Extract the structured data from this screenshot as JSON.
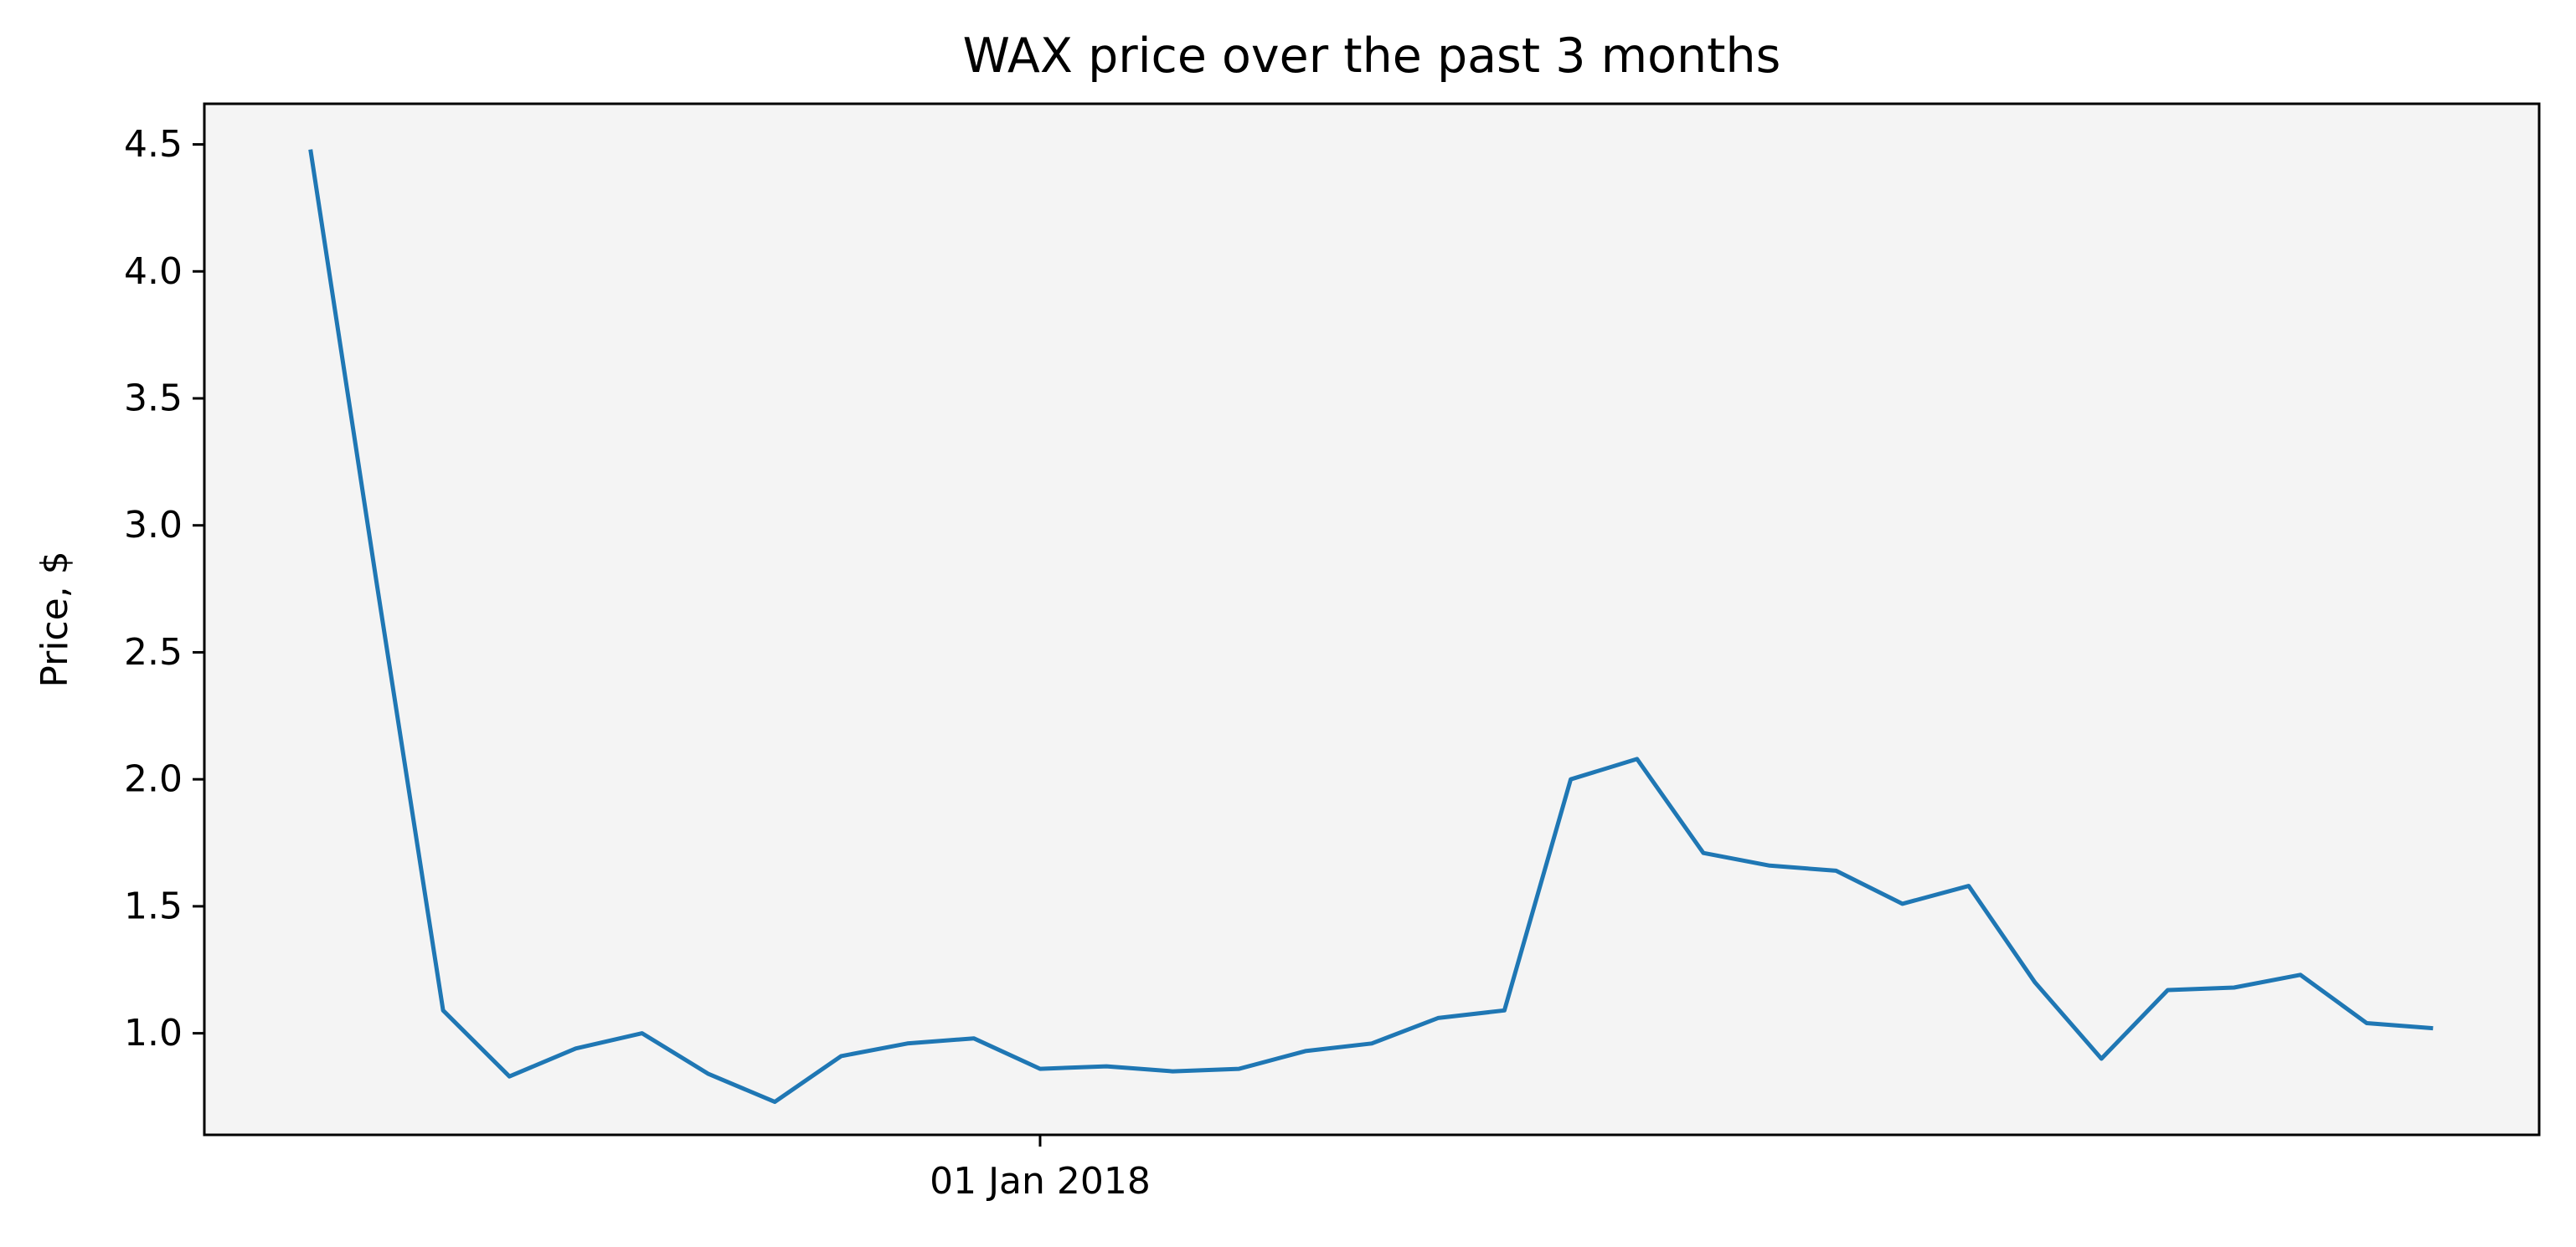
{
  "chart_data": {
    "type": "line",
    "title": "WAX price over the past 3 months",
    "xlabel": "",
    "ylabel": "Price, $",
    "x_ticks": [
      {
        "label": "01 Jan 2018",
        "index": 11
      }
    ],
    "y_ticks": [
      1.0,
      1.5,
      2.0,
      2.5,
      3.0,
      3.5,
      4.0,
      4.5
    ],
    "y_tick_labels": [
      "1.0",
      "1.5",
      "2.0",
      "2.5",
      "3.0",
      "3.5",
      "4.0",
      "4.5"
    ],
    "ylim": [
      0.6,
      4.66
    ],
    "xlim": [
      -1.6,
      33.6
    ],
    "grid": false,
    "background": "#f4f4f4",
    "series": [
      {
        "color": "#1f77b4",
        "values": [
          4.48,
          2.77,
          1.09,
          0.83,
          0.94,
          1.0,
          0.84,
          0.73,
          0.91,
          0.96,
          0.98,
          0.86,
          0.87,
          0.85,
          0.86,
          0.93,
          0.96,
          1.06,
          1.09,
          2.0,
          2.08,
          1.71,
          1.66,
          1.64,
          1.51,
          1.58,
          1.2,
          0.9,
          1.17,
          1.18,
          1.23,
          1.04,
          1.02
        ]
      }
    ]
  }
}
